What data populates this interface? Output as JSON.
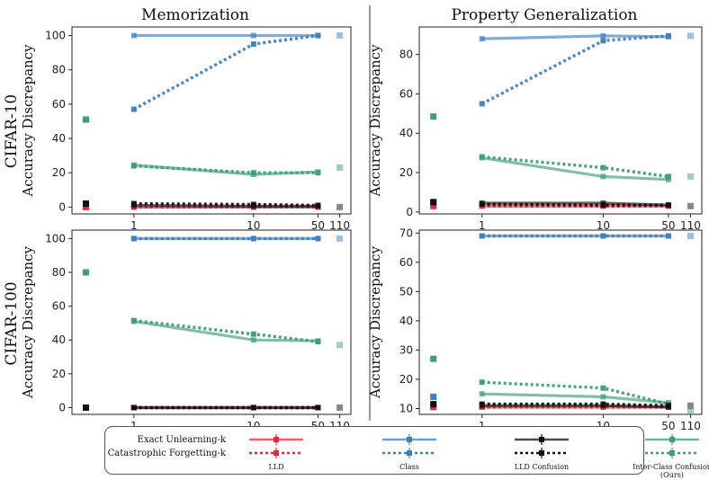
{
  "figure": {
    "column_titles": [
      "Memorization",
      "Property Generalization"
    ],
    "row_titles": [
      "CIFAR-10",
      "CIFAR-100"
    ],
    "ylabel": "Accuracy Discrepancy"
  },
  "legend": {
    "row_labels": [
      "Exact Unlearning-k",
      "Catastrophic Forgetting-k"
    ],
    "items": [
      {
        "name": "LLD",
        "color": "#e8283a"
      },
      {
        "name": "Class",
        "color": "#3f7fbf"
      },
      {
        "name": "LLD Confusion",
        "color": "#111111"
      },
      {
        "name": "Inter-Class Confusion (Ours)",
        "color": "#3e9e78"
      }
    ]
  },
  "colors": {
    "LLD": "#e8283a",
    "Class": "#3f7fbf",
    "LLD Confusion": "#111111",
    "Inter-Class Confusion (Ours)": "#3e9e78"
  },
  "chart_data": [
    {
      "type": "line",
      "title": "Memorization",
      "row": "CIFAR-10",
      "x": [
        1,
        10,
        50
      ],
      "xticks": [
        "1",
        "10",
        "50",
        "110"
      ],
      "ylabel": "Accuracy Discrepancy",
      "ylim": [
        -4,
        105
      ],
      "yticks": [
        0,
        20,
        40,
        60,
        80,
        100
      ],
      "series": [
        {
          "name": "LLD",
          "style": "solid",
          "values": [
            0,
            0,
            0
          ],
          "k0": 0,
          "k110": null
        },
        {
          "name": "LLD",
          "style": "dotted",
          "values": [
            0,
            0,
            0
          ],
          "k0": null,
          "k110": null
        },
        {
          "name": "Class",
          "style": "solid",
          "values": [
            100,
            100,
            100
          ],
          "k0": 1,
          "k110": 100
        },
        {
          "name": "Class",
          "style": "dotted",
          "values": [
            57,
            95,
            100
          ],
          "k0": null,
          "k110": null
        },
        {
          "name": "LLD Confusion",
          "style": "solid",
          "values": [
            1,
            0.5,
            0.5
          ],
          "k0": 2,
          "k110": 0
        },
        {
          "name": "LLD Confusion",
          "style": "dotted",
          "values": [
            2,
            1.5,
            1
          ],
          "k0": null,
          "k110": null
        },
        {
          "name": "Inter-Class Confusion (Ours)",
          "style": "solid",
          "values": [
            24.5,
            19,
            20.5
          ],
          "k0": 51,
          "k110": 23
        },
        {
          "name": "Inter-Class Confusion (Ours)",
          "style": "dotted",
          "values": [
            24,
            20,
            20
          ],
          "k0": null,
          "k110": null
        }
      ]
    },
    {
      "type": "line",
      "title": "Property Generalization",
      "row": "CIFAR-10",
      "x": [
        1,
        10,
        50
      ],
      "xticks": [
        "1",
        "10",
        "50",
        "110"
      ],
      "ylabel": "Accuracy Discrepancy",
      "ylim": [
        -1,
        94
      ],
      "yticks": [
        0,
        20,
        40,
        60,
        80
      ],
      "series": [
        {
          "name": "LLD",
          "style": "solid",
          "values": [
            3,
            3,
            3
          ],
          "k0": 3,
          "k110": null
        },
        {
          "name": "LLD",
          "style": "dotted",
          "values": [
            3,
            3,
            3
          ],
          "k0": null,
          "k110": null
        },
        {
          "name": "Class",
          "style": "solid",
          "values": [
            88,
            89.5,
            89
          ],
          "k0": 5,
          "k110": 89.5
        },
        {
          "name": "Class",
          "style": "dotted",
          "values": [
            55,
            87,
            89.5
          ],
          "k0": null,
          "k110": null
        },
        {
          "name": "LLD Confusion",
          "style": "solid",
          "values": [
            4.5,
            4.5,
            3.5
          ],
          "k0": 5,
          "k110": 3
        },
        {
          "name": "LLD Confusion",
          "style": "dotted",
          "values": [
            4,
            3.5,
            3.5
          ],
          "k0": null,
          "k110": null
        },
        {
          "name": "Inter-Class Confusion (Ours)",
          "style": "solid",
          "values": [
            27.5,
            18,
            16.5
          ],
          "k0": 48.5,
          "k110": 18
        },
        {
          "name": "Inter-Class Confusion (Ours)",
          "style": "dotted",
          "values": [
            28,
            22.5,
            18
          ],
          "k0": null,
          "k110": null
        }
      ]
    },
    {
      "type": "line",
      "title": "Memorization",
      "row": "CIFAR-100",
      "x": [
        1,
        10,
        50
      ],
      "xticks": [
        "1",
        "10",
        "50",
        "110"
      ],
      "ylabel": "Accuracy Discrepancy",
      "ylim": [
        -4,
        105
      ],
      "yticks": [
        0,
        20,
        40,
        60,
        80,
        100
      ],
      "series": [
        {
          "name": "LLD",
          "style": "solid",
          "values": [
            0,
            0,
            0
          ],
          "k0": null,
          "k110": null
        },
        {
          "name": "LLD",
          "style": "dotted",
          "values": [
            0,
            0,
            0
          ],
          "k0": null,
          "k110": null
        },
        {
          "name": "Class",
          "style": "solid",
          "values": [
            100,
            100,
            100
          ],
          "k0": null,
          "k110": 100
        },
        {
          "name": "Class",
          "style": "dotted",
          "values": [
            100,
            100,
            100
          ],
          "k0": null,
          "k110": null
        },
        {
          "name": "LLD Confusion",
          "style": "solid",
          "values": [
            0,
            0,
            0
          ],
          "k0": 0,
          "k110": 0
        },
        {
          "name": "LLD Confusion",
          "style": "dotted",
          "values": [
            0,
            0,
            0
          ],
          "k0": null,
          "k110": null
        },
        {
          "name": "Inter-Class Confusion (Ours)",
          "style": "solid",
          "values": [
            51,
            40,
            39.5
          ],
          "k0": 80,
          "k110": 37
        },
        {
          "name": "Inter-Class Confusion (Ours)",
          "style": "dotted",
          "values": [
            51.5,
            43.5,
            39
          ],
          "k0": null,
          "k110": null
        }
      ]
    },
    {
      "type": "line",
      "title": "Property Generalization",
      "row": "CIFAR-100",
      "x": [
        1,
        10,
        50
      ],
      "xticks": [
        "1",
        "10",
        "50",
        "110"
      ],
      "ylabel": "Accuracy Discrepancy",
      "ylim": [
        8,
        71
      ],
      "yticks": [
        10,
        20,
        30,
        40,
        50,
        60,
        70
      ],
      "series": [
        {
          "name": "LLD",
          "style": "solid",
          "values": [
            10.5,
            10.5,
            10.5
          ],
          "k0": 10.5,
          "k110": null
        },
        {
          "name": "LLD",
          "style": "dotted",
          "values": [
            10.5,
            10.5,
            10.5
          ],
          "k0": null,
          "k110": null
        },
        {
          "name": "Class",
          "style": "solid",
          "values": [
            69,
            69,
            69
          ],
          "k0": 14,
          "k110": 69
        },
        {
          "name": "Class",
          "style": "dotted",
          "values": [
            69,
            69,
            69
          ],
          "k0": null,
          "k110": null
        },
        {
          "name": "LLD Confusion",
          "style": "solid",
          "values": [
            11,
            11,
            10.5
          ],
          "k0": 11.5,
          "k110": 11
        },
        {
          "name": "LLD Confusion",
          "style": "dotted",
          "values": [
            11.5,
            11.5,
            11
          ],
          "k0": null,
          "k110": null
        },
        {
          "name": "Inter-Class Confusion (Ours)",
          "style": "solid",
          "values": [
            15,
            14,
            12
          ],
          "k0": 27,
          "k110": 9
        },
        {
          "name": "Inter-Class Confusion (Ours)",
          "style": "dotted",
          "values": [
            19,
            17,
            11.5
          ],
          "k0": null,
          "k110": null
        }
      ]
    }
  ]
}
